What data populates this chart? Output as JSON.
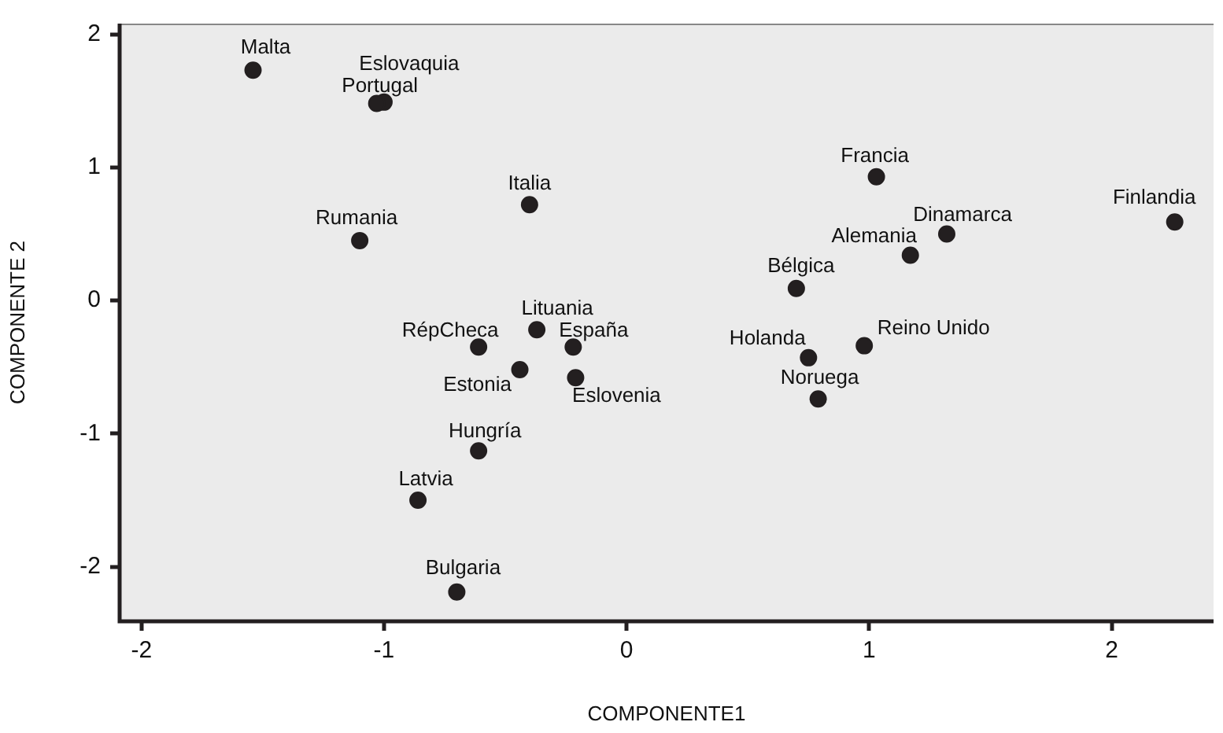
{
  "chart_data": {
    "type": "scatter",
    "xlabel": "COMPONENTE1",
    "ylabel": "COMPONENTE 2",
    "x": [
      -1.54,
      -1.0,
      -1.03,
      -0.4,
      -1.1,
      -0.37,
      -0.61,
      -0.22,
      -0.44,
      -0.21,
      -0.61,
      -0.86,
      -0.7,
      1.03,
      1.32,
      1.17,
      2.26,
      0.7,
      0.75,
      0.98,
      0.79
    ],
    "values": [
      1.73,
      1.49,
      1.48,
      0.72,
      0.45,
      -0.22,
      -0.35,
      -0.35,
      -0.52,
      -0.58,
      -1.13,
      -1.5,
      -2.19,
      0.93,
      0.5,
      0.34,
      0.59,
      0.09,
      -0.43,
      -0.34,
      -0.74
    ],
    "color": "#231f20",
    "marker": "circle",
    "grid": false,
    "legend": false,
    "xlim": [
      -2.09,
      2.42
    ],
    "ylim": [
      -2.41,
      2.08
    ],
    "xticks": [
      -2,
      -1,
      0,
      1,
      2
    ],
    "yticks": [
      -2,
      -1,
      0,
      1,
      2
    ],
    "annotations": [
      {
        "text": "Malta",
        "x": -1.54,
        "y": 1.73
      },
      {
        "text": "Eslovaquia",
        "x": -1.0,
        "y": 1.49
      },
      {
        "text": "Portugal",
        "x": -1.03,
        "y": 1.48
      },
      {
        "text": "Italia",
        "x": -0.4,
        "y": 0.72
      },
      {
        "text": "Rumania",
        "x": -1.1,
        "y": 0.45
      },
      {
        "text": "Lituania",
        "x": -0.37,
        "y": -0.22
      },
      {
        "text": "RépCheca",
        "x": -0.61,
        "y": -0.35
      },
      {
        "text": "España",
        "x": -0.22,
        "y": -0.35
      },
      {
        "text": "Estonia",
        "x": -0.44,
        "y": -0.52
      },
      {
        "text": "Eslovenia",
        "x": -0.21,
        "y": -0.58
      },
      {
        "text": "Hungría",
        "x": -0.61,
        "y": -1.13
      },
      {
        "text": "Latvia",
        "x": -0.86,
        "y": -1.5
      },
      {
        "text": "Bulgaria",
        "x": -0.7,
        "y": -2.19
      },
      {
        "text": "Francia",
        "x": 1.03,
        "y": 0.93
      },
      {
        "text": "Dinamarca",
        "x": 1.32,
        "y": 0.5
      },
      {
        "text": "Alemania",
        "x": 1.17,
        "y": 0.34
      },
      {
        "text": "Finlandia",
        "x": 2.26,
        "y": 0.59
      },
      {
        "text": "Bélgica",
        "x": 0.7,
        "y": 0.09
      },
      {
        "text": "Holanda",
        "x": 0.75,
        "y": -0.43
      },
      {
        "text": "Reino Unido",
        "x": 0.98,
        "y": -0.34
      },
      {
        "text": "Noruega",
        "x": 0.79,
        "y": -0.74
      }
    ]
  }
}
